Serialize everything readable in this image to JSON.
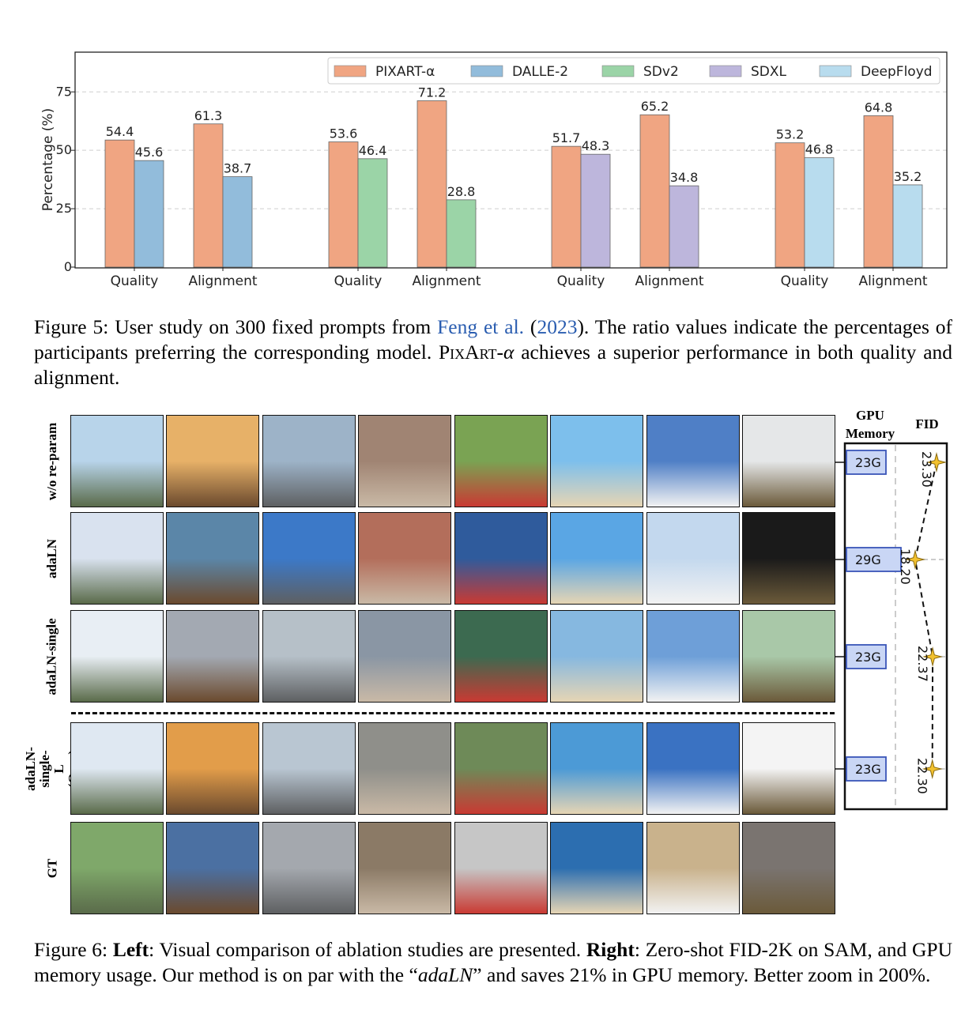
{
  "figure5": {
    "chart_data": {
      "type": "bar",
      "ylabel": "Percentage (%)",
      "ylim": [
        0,
        92
      ],
      "yticks": [
        0,
        25,
        50,
        75
      ],
      "grid": "horizontal-dashed",
      "legend_placement": "top-right",
      "legend": [
        {
          "name": "PIXART-α",
          "color": "#f0a582"
        },
        {
          "name": "DALLE-2",
          "color": "#92bcdb"
        },
        {
          "name": "SDv2",
          "color": "#9bd4a7"
        },
        {
          "name": "SDXL",
          "color": "#bdb6dc"
        },
        {
          "name": "DeepFloyd",
          "color": "#b8dcee"
        }
      ],
      "groups": [
        {
          "competitor": "DALLE-2",
          "categories": [
            "Quality",
            "Alignment"
          ],
          "pixart": [
            54.4,
            61.3
          ],
          "other": [
            45.6,
            38.7
          ]
        },
        {
          "competitor": "SDv2",
          "categories": [
            "Quality",
            "Alignment"
          ],
          "pixart": [
            53.6,
            71.2
          ],
          "other": [
            46.4,
            28.8
          ]
        },
        {
          "competitor": "SDXL",
          "categories": [
            "Quality",
            "Alignment"
          ],
          "pixart": [
            51.7,
            65.2
          ],
          "other": [
            48.3,
            34.8
          ]
        },
        {
          "competitor": "DeepFloyd",
          "categories": [
            "Quality",
            "Alignment"
          ],
          "pixart": [
            53.2,
            64.8
          ],
          "other": [
            46.8,
            35.2
          ]
        }
      ]
    },
    "caption": {
      "label": "Figure 5:",
      "text1": "User study on 300 fixed prompts from",
      "link_author": "Feng et al.",
      "link_year": "2023",
      "text2": "). The ratio values indicate the percentages of participants preferring the corresponding model.",
      "model_name": "PixArt-",
      "model_alpha": "α",
      "text3": "achieves a superior performance in both quality and alignment."
    }
  },
  "figure6": {
    "rows": [
      {
        "label": "w/o re-param"
      },
      {
        "label": "adaLN"
      },
      {
        "label": "adaLN-single"
      },
      {
        "label": "adaLN-single-L (Ours)"
      },
      {
        "label": "GT"
      }
    ],
    "right_panel": {
      "gpu_header": "GPU Memory",
      "fid_header": "FID",
      "chart_data": {
        "type": "line",
        "series": [
          {
            "name": "FID",
            "values": [
              23.3,
              18.2,
              22.37,
              22.3
            ]
          }
        ],
        "fid_labels": [
          "23.30",
          "18.20",
          "22.37",
          "22.30"
        ],
        "gpu_memory": [
          "23G",
          "29G",
          "23G",
          "23G"
        ],
        "gpu_values": [
          23,
          29,
          23,
          23
        ]
      }
    },
    "caption": {
      "label": "Figure 6:",
      "left_bold": "Left",
      "left_text": ": Visual comparison of ablation studies are presented.",
      "right_bold": "Right",
      "right_text1": ": Zero-shot FID-2K on SAM, and GPU memory usage. Our method is on par with the “",
      "right_em": "adaLN",
      "right_text2": "” and saves 21% in GPU memory. Better zoom in 200%."
    }
  }
}
